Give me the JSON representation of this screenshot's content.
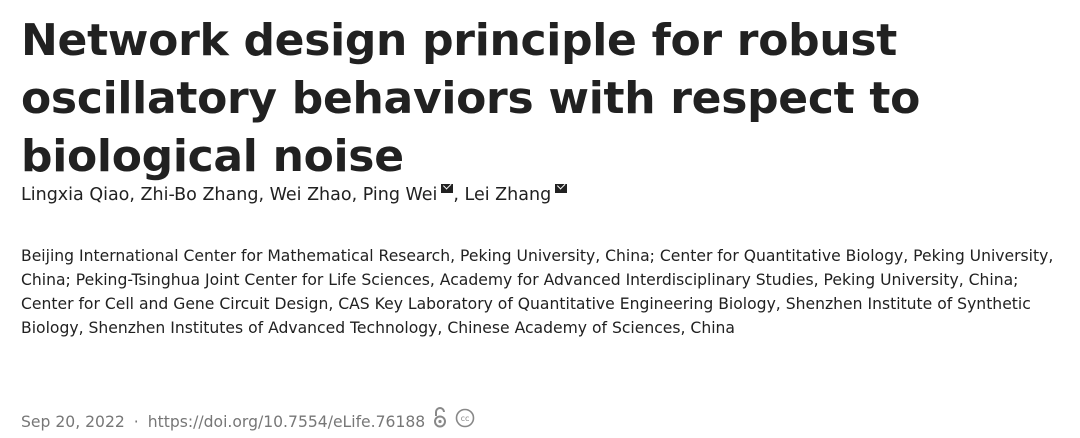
{
  "title": "Network design principle for robust oscillatory behaviors with respect to biological noise",
  "authors": [
    {
      "name": "Lingxia Qiao",
      "sep": ", "
    },
    {
      "name": "Zhi-Bo Zhang",
      "sep": ", "
    },
    {
      "name": "Wei Zhao",
      "sep": ", "
    },
    {
      "name": "Ping Wei",
      "sep": "",
      "corresponding": true
    },
    {
      "name": ", Lei Zhang",
      "sep": "",
      "corresponding": true
    }
  ],
  "affiliations": "Beijing International Center for Mathematical Research, Peking University, China; Center for Quantitative Biology, Peking University, China; Peking-Tsinghua Joint Center for Life Sciences, Academy for Advanced Interdisciplinary Studies, Peking University, China; Center for Cell and Gene Circuit Design, CAS Key Laboratory of Quantitative Engineering Biology, Shenzhen Institute of Synthetic Biology, Shenzhen Institutes of Advanced Technology, Chinese Academy of Sciences, China",
  "meta": {
    "date": "Sep 20, 2022",
    "separator": "·",
    "doi": "https://doi.org/10.7554/eLife.76188",
    "icons": [
      "open-access-icon",
      "creative-commons-icon"
    ]
  }
}
